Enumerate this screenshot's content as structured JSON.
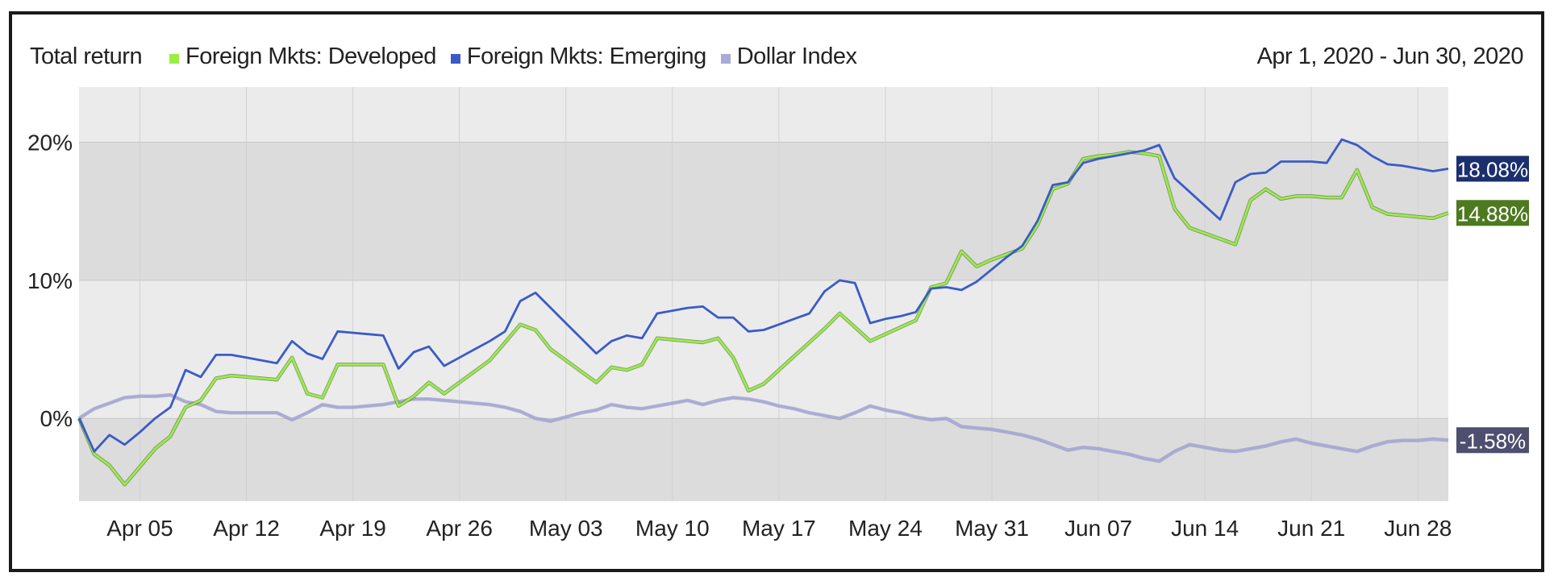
{
  "header": {
    "title": "Total return",
    "date_range": "Apr 1, 2020 - Jun 30, 2020"
  },
  "colors": {
    "developed": "#99ee44",
    "emerging": "#3a5bc7",
    "dollar": "#aaaad8",
    "band_dark": "#dcdcdc",
    "band_light": "#ebebeb",
    "tag_developed": "#4d7a1f",
    "tag_emerging": "#1b2f6e",
    "tag_dollar": "#4e4e6e"
  },
  "chart_data": {
    "type": "line",
    "ylim": [
      -6,
      24
    ],
    "y_ticks": [
      0,
      10,
      20
    ],
    "y_tick_labels": [
      "0%",
      "10%",
      "20%"
    ],
    "x_ticks": [
      4,
      11,
      18,
      25,
      32,
      39,
      46,
      53,
      60,
      67,
      74,
      81,
      88
    ],
    "x_tick_labels": [
      "Apr 05",
      "Apr 12",
      "Apr 19",
      "Apr 26",
      "May 03",
      "May 10",
      "May 17",
      "May 24",
      "May 31",
      "Jun 07",
      "Jun 14",
      "Jun 21",
      "Jun 28"
    ],
    "x_range": [
      0,
      90
    ],
    "series": [
      {
        "name": "Foreign Mkts: Developed",
        "color_key": "developed",
        "end_label": "14.88%",
        "tag_color_key": "tag_developed",
        "points": [
          [
            0,
            0
          ],
          [
            1,
            -2.6
          ],
          [
            2,
            -3.4
          ],
          [
            3,
            -4.8
          ],
          [
            4,
            -3.5
          ],
          [
            5,
            -2.2
          ],
          [
            6,
            -1.3
          ],
          [
            7,
            0.8
          ],
          [
            8,
            1.3
          ],
          [
            9,
            2.9
          ],
          [
            10,
            3.1
          ],
          [
            11,
            3.0
          ],
          [
            12,
            2.9
          ],
          [
            13,
            2.8
          ],
          [
            14,
            4.4
          ],
          [
            15,
            1.8
          ],
          [
            16,
            1.5
          ],
          [
            17,
            3.9
          ],
          [
            18,
            3.9
          ],
          [
            19,
            3.9
          ],
          [
            20,
            3.9
          ],
          [
            21,
            0.9
          ],
          [
            22,
            1.6
          ],
          [
            23,
            2.6
          ],
          [
            24,
            1.8
          ],
          [
            25,
            2.6
          ],
          [
            26,
            3.4
          ],
          [
            27,
            4.2
          ],
          [
            28,
            5.5
          ],
          [
            29,
            6.8
          ],
          [
            30,
            6.4
          ],
          [
            31,
            5.0
          ],
          [
            32,
            4.2
          ],
          [
            33,
            3.4
          ],
          [
            34,
            2.6
          ],
          [
            35,
            3.7
          ],
          [
            36,
            3.5
          ],
          [
            37,
            3.9
          ],
          [
            38,
            5.8
          ],
          [
            39,
            5.7
          ],
          [
            40,
            5.6
          ],
          [
            41,
            5.5
          ],
          [
            42,
            5.8
          ],
          [
            43,
            4.4
          ],
          [
            44,
            2.0
          ],
          [
            45,
            2.5
          ],
          [
            46,
            3.5
          ],
          [
            47,
            4.5
          ],
          [
            48,
            5.5
          ],
          [
            49,
            6.5
          ],
          [
            50,
            7.6
          ],
          [
            51,
            6.6
          ],
          [
            52,
            5.6
          ],
          [
            53,
            6.1
          ],
          [
            54,
            6.6
          ],
          [
            55,
            7.1
          ],
          [
            56,
            9.5
          ],
          [
            57,
            9.8
          ],
          [
            58,
            12.1
          ],
          [
            59,
            11.0
          ],
          [
            60,
            11.5
          ],
          [
            61,
            11.9
          ],
          [
            62,
            12.3
          ],
          [
            63,
            14.0
          ],
          [
            64,
            16.6
          ],
          [
            65,
            17.0
          ],
          [
            66,
            18.8
          ],
          [
            67,
            19.0
          ],
          [
            68,
            19.1
          ],
          [
            69,
            19.3
          ],
          [
            70,
            19.2
          ],
          [
            71,
            19.0
          ],
          [
            72,
            15.2
          ],
          [
            73,
            13.8
          ],
          [
            74,
            13.4
          ],
          [
            75,
            13.0
          ],
          [
            76,
            12.6
          ],
          [
            77,
            15.8
          ],
          [
            78,
            16.6
          ],
          [
            79,
            15.9
          ],
          [
            80,
            16.1
          ],
          [
            81,
            16.1
          ],
          [
            82,
            16.0
          ],
          [
            83,
            16.0
          ],
          [
            84,
            18.0
          ],
          [
            85,
            15.3
          ],
          [
            86,
            14.8
          ],
          [
            87,
            14.7
          ],
          [
            88,
            14.6
          ],
          [
            89,
            14.5
          ],
          [
            90,
            14.88
          ]
        ]
      },
      {
        "name": "Foreign Mkts: Emerging",
        "color_key": "emerging",
        "end_label": "18.08%",
        "tag_color_key": "tag_emerging",
        "points": [
          [
            0,
            0
          ],
          [
            1,
            -2.4
          ],
          [
            2,
            -1.2
          ],
          [
            3,
            -1.9
          ],
          [
            4,
            -1.0
          ],
          [
            5,
            0.0
          ],
          [
            6,
            0.8
          ],
          [
            7,
            3.5
          ],
          [
            8,
            3.0
          ],
          [
            9,
            4.6
          ],
          [
            10,
            4.6
          ],
          [
            11,
            4.4
          ],
          [
            12,
            4.2
          ],
          [
            13,
            4.0
          ],
          [
            14,
            5.6
          ],
          [
            15,
            4.7
          ],
          [
            16,
            4.3
          ],
          [
            17,
            6.3
          ],
          [
            18,
            6.2
          ],
          [
            19,
            6.1
          ],
          [
            20,
            6.0
          ],
          [
            21,
            3.6
          ],
          [
            22,
            4.8
          ],
          [
            23,
            5.2
          ],
          [
            24,
            3.8
          ],
          [
            25,
            4.4
          ],
          [
            26,
            5.0
          ],
          [
            27,
            5.6
          ],
          [
            28,
            6.3
          ],
          [
            29,
            8.5
          ],
          [
            30,
            9.1
          ],
          [
            31,
            8.0
          ],
          [
            32,
            6.9
          ],
          [
            33,
            5.8
          ],
          [
            34,
            4.7
          ],
          [
            35,
            5.6
          ],
          [
            36,
            6.0
          ],
          [
            37,
            5.8
          ],
          [
            38,
            7.6
          ],
          [
            39,
            7.8
          ],
          [
            40,
            8.0
          ],
          [
            41,
            8.1
          ],
          [
            42,
            7.3
          ],
          [
            43,
            7.3
          ],
          [
            44,
            6.3
          ],
          [
            45,
            6.4
          ],
          [
            46,
            6.8
          ],
          [
            47,
            7.2
          ],
          [
            48,
            7.6
          ],
          [
            49,
            9.2
          ],
          [
            50,
            10.0
          ],
          [
            51,
            9.8
          ],
          [
            52,
            6.9
          ],
          [
            53,
            7.2
          ],
          [
            54,
            7.4
          ],
          [
            55,
            7.7
          ],
          [
            56,
            9.4
          ],
          [
            57,
            9.5
          ],
          [
            58,
            9.3
          ],
          [
            59,
            9.9
          ],
          [
            60,
            10.8
          ],
          [
            61,
            11.7
          ],
          [
            62,
            12.5
          ],
          [
            63,
            14.3
          ],
          [
            64,
            16.9
          ],
          [
            65,
            17.1
          ],
          [
            66,
            18.5
          ],
          [
            67,
            18.8
          ],
          [
            68,
            19.0
          ],
          [
            69,
            19.2
          ],
          [
            70,
            19.4
          ],
          [
            71,
            19.8
          ],
          [
            72,
            17.4
          ],
          [
            73,
            16.4
          ],
          [
            74,
            15.4
          ],
          [
            75,
            14.4
          ],
          [
            76,
            17.1
          ],
          [
            77,
            17.7
          ],
          [
            78,
            17.8
          ],
          [
            79,
            18.6
          ],
          [
            80,
            18.6
          ],
          [
            81,
            18.6
          ],
          [
            82,
            18.5
          ],
          [
            83,
            20.2
          ],
          [
            84,
            19.8
          ],
          [
            85,
            19.0
          ],
          [
            86,
            18.4
          ],
          [
            87,
            18.3
          ],
          [
            88,
            18.1
          ],
          [
            89,
            17.9
          ],
          [
            90,
            18.08
          ]
        ]
      },
      {
        "name": "Dollar Index",
        "color_key": "dollar",
        "end_label": "-1.58%",
        "tag_color_key": "tag_dollar",
        "points": [
          [
            0,
            0
          ],
          [
            1,
            0.7
          ],
          [
            2,
            1.1
          ],
          [
            3,
            1.5
          ],
          [
            4,
            1.6
          ],
          [
            5,
            1.6
          ],
          [
            6,
            1.7
          ],
          [
            7,
            1.2
          ],
          [
            8,
            1.0
          ],
          [
            9,
            0.5
          ],
          [
            10,
            0.4
          ],
          [
            11,
            0.4
          ],
          [
            12,
            0.4
          ],
          [
            13,
            0.4
          ],
          [
            14,
            -0.1
          ],
          [
            15,
            0.4
          ],
          [
            16,
            1.0
          ],
          [
            17,
            0.8
          ],
          [
            18,
            0.8
          ],
          [
            19,
            0.9
          ],
          [
            20,
            1.0
          ],
          [
            21,
            1.2
          ],
          [
            22,
            1.4
          ],
          [
            23,
            1.4
          ],
          [
            24,
            1.3
          ],
          [
            25,
            1.2
          ],
          [
            26,
            1.1
          ],
          [
            27,
            1.0
          ],
          [
            28,
            0.8
          ],
          [
            29,
            0.5
          ],
          [
            30,
            0.0
          ],
          [
            31,
            -0.2
          ],
          [
            32,
            0.1
          ],
          [
            33,
            0.4
          ],
          [
            34,
            0.6
          ],
          [
            35,
            1.0
          ],
          [
            36,
            0.8
          ],
          [
            37,
            0.7
          ],
          [
            38,
            0.9
          ],
          [
            39,
            1.1
          ],
          [
            40,
            1.3
          ],
          [
            41,
            1.0
          ],
          [
            42,
            1.3
          ],
          [
            43,
            1.5
          ],
          [
            44,
            1.4
          ],
          [
            45,
            1.2
          ],
          [
            46,
            0.9
          ],
          [
            47,
            0.7
          ],
          [
            48,
            0.4
          ],
          [
            49,
            0.2
          ],
          [
            50,
            0.0
          ],
          [
            51,
            0.4
          ],
          [
            52,
            0.9
          ],
          [
            53,
            0.6
          ],
          [
            54,
            0.4
          ],
          [
            55,
            0.1
          ],
          [
            56,
            -0.1
          ],
          [
            57,
            0.0
          ],
          [
            58,
            -0.6
          ],
          [
            59,
            -0.7
          ],
          [
            60,
            -0.8
          ],
          [
            61,
            -1.0
          ],
          [
            62,
            -1.2
          ],
          [
            63,
            -1.5
          ],
          [
            64,
            -1.9
          ],
          [
            65,
            -2.3
          ],
          [
            66,
            -2.1
          ],
          [
            67,
            -2.2
          ],
          [
            68,
            -2.4
          ],
          [
            69,
            -2.6
          ],
          [
            70,
            -2.9
          ],
          [
            71,
            -3.1
          ],
          [
            72,
            -2.4
          ],
          [
            73,
            -1.9
          ],
          [
            74,
            -2.1
          ],
          [
            75,
            -2.3
          ],
          [
            76,
            -2.4
          ],
          [
            77,
            -2.2
          ],
          [
            78,
            -2.0
          ],
          [
            79,
            -1.7
          ],
          [
            80,
            -1.5
          ],
          [
            81,
            -1.8
          ],
          [
            82,
            -2.0
          ],
          [
            83,
            -2.2
          ],
          [
            84,
            -2.4
          ],
          [
            85,
            -2.0
          ],
          [
            86,
            -1.7
          ],
          [
            87,
            -1.6
          ],
          [
            88,
            -1.6
          ],
          [
            89,
            -1.5
          ],
          [
            90,
            -1.58
          ]
        ]
      }
    ]
  }
}
